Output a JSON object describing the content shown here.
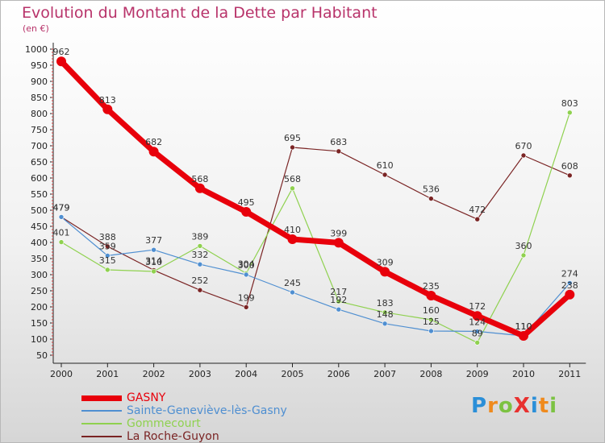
{
  "title": "Evolution du Montant de la Dette par Habitant",
  "subtitle": "(en €)",
  "logo": {
    "text": "ProXiti",
    "letters": [
      {
        "ch": "P",
        "color": "#2b8fd8"
      },
      {
        "ch": "r",
        "color": "#ef8a1d"
      },
      {
        "ch": "o",
        "color": "#7cc242"
      },
      {
        "ch": "X",
        "color": "#e8312f"
      },
      {
        "ch": "i",
        "color": "#2b8fd8"
      },
      {
        "ch": "t",
        "color": "#ef8a1d"
      },
      {
        "ch": "i",
        "color": "#7cc242"
      }
    ]
  },
  "chart_data": {
    "type": "line",
    "title": "Evolution du Montant de la Dette par Habitant",
    "ylabel": "(en €)",
    "xlabel": "",
    "x": [
      "2000",
      "2001",
      "2002",
      "2003",
      "2004",
      "2005",
      "2006",
      "2007",
      "2008",
      "2009",
      "2010",
      "2011"
    ],
    "ylim": [
      50,
      1000
    ],
    "yticks": [
      50,
      100,
      150,
      200,
      250,
      300,
      350,
      400,
      450,
      500,
      550,
      600,
      650,
      700,
      750,
      800,
      850,
      900,
      950,
      1000
    ],
    "grid": false,
    "legend_position": "bottom-left",
    "series": [
      {
        "name": "GASNY",
        "color": "#e8000b",
        "values": [
          962,
          813,
          682,
          568,
          495,
          410,
          399,
          309,
          235,
          172,
          110,
          238
        ]
      },
      {
        "name": "Sainte-Geneviève-lès-Gasny",
        "color": "#4f8fd1",
        "values": [
          479,
          359,
          377,
          332,
          300,
          245,
          192,
          148,
          125,
          124,
          110,
          274
        ]
      },
      {
        "name": "Gommecourt",
        "color": "#8fd14f",
        "values": [
          401,
          315,
          310,
          389,
          304,
          568,
          217,
          183,
          160,
          89,
          360,
          803
        ]
      },
      {
        "name": "La Roche-Guyon",
        "color": "#7a2424",
        "values": [
          479,
          388,
          314,
          252,
          199,
          695,
          683,
          610,
          536,
          472,
          670,
          608
        ]
      }
    ]
  }
}
